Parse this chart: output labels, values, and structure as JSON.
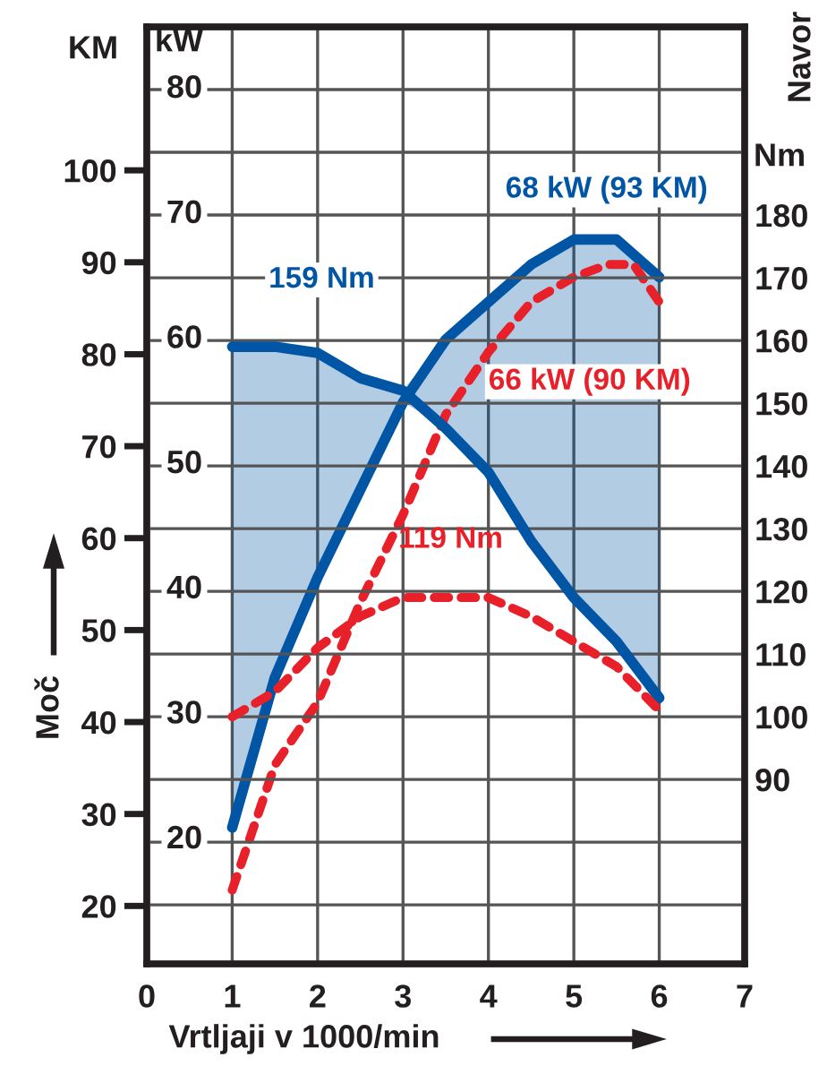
{
  "chart_data": {
    "type": "line",
    "xlabel": "Vrtljaji v 1000/min",
    "ylabel": "Moč",
    "y2label": "Navor",
    "xlim": [
      0,
      7
    ],
    "xticks": [
      0,
      1,
      2,
      3,
      4,
      5,
      6,
      7
    ],
    "ylim": [
      10.1,
      85
    ],
    "yticks": [
      20,
      30,
      40,
      50,
      60,
      70,
      80
    ],
    "y2lim": [
      60.6,
      210
    ],
    "y2ticks": [
      {
        "value": 70,
        "label": null
      },
      {
        "value": 80,
        "label": null
      },
      90,
      100,
      110,
      120,
      130,
      140,
      150,
      160,
      170,
      180,
      {
        "value": 190,
        "label": null
      },
      {
        "value": 200,
        "label": null
      }
    ],
    "y3lim": [
      13.7,
      115.6
    ],
    "y3ticks": [
      20,
      30,
      40,
      50,
      60,
      70,
      80,
      90,
      100
    ],
    "grid": true,
    "series": [
      {
        "axis": "y",
        "color": "#0055a5",
        "line_style": "solid",
        "x": [
          1,
          1.5,
          2,
          2.5,
          3,
          3.5,
          4,
          4.5,
          5,
          5.5,
          6
        ],
        "values": [
          21,
          33,
          41,
          48,
          55,
          60,
          63,
          66,
          68,
          68,
          65
        ],
        "lower": [
          21,
          33,
          41,
          48,
          55,
          53,
          49,
          44,
          39,
          36,
          32
        ],
        "upper": [
          60,
          59,
          59,
          57,
          56,
          60,
          63,
          66,
          68,
          68,
          65
        ]
      },
      {
        "axis": "y",
        "color": "#e8202a",
        "line_style": "dashed",
        "x": [
          1,
          1.5,
          2,
          2.5,
          3,
          3.5,
          4,
          4.5,
          5,
          5.4,
          5.7,
          6
        ],
        "values": [
          16,
          26,
          31,
          39,
          46,
          54,
          59,
          63,
          65,
          66,
          66,
          63
        ]
      },
      {
        "axis": "y2",
        "color": "#0055a5",
        "line_style": "solid",
        "x": [
          1,
          1.5,
          2,
          2.5,
          3,
          3.5,
          4,
          4.5,
          5,
          5.5,
          6
        ],
        "values": [
          159,
          159,
          158,
          154,
          152,
          146,
          139,
          128,
          119,
          112,
          103
        ]
      },
      {
        "axis": "y2",
        "color": "#e8202a",
        "line_style": "dashed",
        "x": [
          1,
          1.5,
          2,
          2.5,
          3,
          3.5,
          4,
          4.5,
          5,
          5.5,
          6
        ],
        "values": [
          100,
          104,
          111,
          116,
          119,
          119,
          119,
          116,
          112,
          108,
          101
        ]
      }
    ],
    "annotations": [
      {
        "text": "159 Nm",
        "x": 1,
        "y": 60
      },
      {
        "text": "119 Nm",
        "x": 3.5,
        "y": 40
      },
      {
        "text": "68 kW (93 KM)",
        "x": 5.5,
        "y": 68
      },
      {
        "text": "66 kW (90 KM)",
        "x": 6,
        "y": 63
      },
      "KM",
      "kW",
      "Nm"
    ]
  }
}
